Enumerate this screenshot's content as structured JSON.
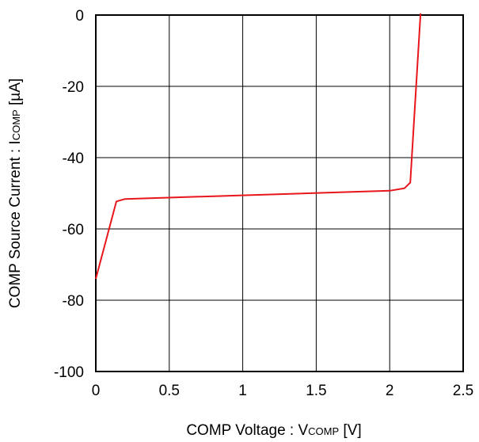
{
  "chart_data": {
    "type": "line",
    "title": "",
    "xlabel": {
      "prefix": "COMP Voltage : V",
      "subscript": "COMP",
      "suffix": " [V]"
    },
    "ylabel": {
      "prefix": "COMP Source Current : I",
      "subscript": "COMP",
      "suffix": " [µA]"
    },
    "xlim": [
      0,
      2.5
    ],
    "ylim": [
      -100,
      0
    ],
    "x_ticks": [
      "0",
      "0.5",
      "1",
      "1.5",
      "2",
      "2.5"
    ],
    "y_ticks": [
      "0",
      "-20",
      "-40",
      "-60",
      "-80",
      "-100"
    ],
    "grid": true,
    "series": [
      {
        "color": "#e8161b",
        "x": [
          0,
          0.14,
          0.2,
          2.0,
          2.1,
          2.14,
          2.21
        ],
        "y": [
          -74,
          -52.3,
          -51.6,
          -49.3,
          -48.6,
          -47,
          0.5
        ]
      }
    ]
  }
}
